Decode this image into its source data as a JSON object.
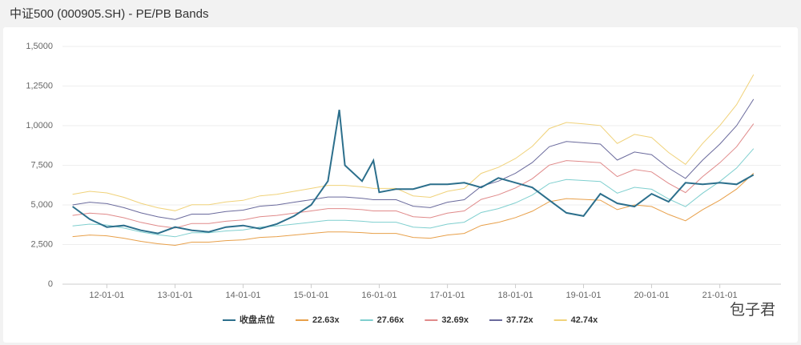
{
  "chart_data": {
    "type": "line",
    "title": "中证500 (000905.SH) - PE/PB Bands",
    "watermark": "包子君",
    "x": [
      "11-07-01",
      "11-10-01",
      "12-01-01",
      "12-04-01",
      "12-07-01",
      "12-10-01",
      "13-01-01",
      "13-04-01",
      "13-07-01",
      "13-10-01",
      "14-01-01",
      "14-04-01",
      "14-07-01",
      "14-10-01",
      "15-01-01",
      "15-04-01",
      "15-06-01",
      "15-07-01",
      "15-10-01",
      "15-12-01",
      "16-01-01",
      "16-04-01",
      "16-07-01",
      "16-10-01",
      "17-01-01",
      "17-04-01",
      "17-07-01",
      "17-10-01",
      "18-01-01",
      "18-04-01",
      "18-07-01",
      "18-10-01",
      "19-01-01",
      "19-04-01",
      "19-07-01",
      "19-10-01",
      "20-01-01",
      "20-04-01",
      "20-07-01",
      "20-10-01",
      "21-01-01",
      "21-04-01",
      "21-07-01"
    ],
    "xlim": [
      "11-05-08",
      "21-11-25"
    ],
    "xticks": [
      "12-01-01",
      "13-01-01",
      "14-01-01",
      "15-01-01",
      "16-01-01",
      "17-01-01",
      "18-01-01",
      "19-01-01",
      "20-01-01",
      "21-01-01"
    ],
    "ylim": [
      0,
      15000
    ],
    "yticks": [
      0,
      {
        "value": 2500,
        "label": "2,500"
      },
      {
        "value": 5000,
        "label": "5,000"
      },
      {
        "value": 7500,
        "label": "7,500"
      },
      {
        "value": 10000,
        "label": "1,0000"
      },
      {
        "value": 12500,
        "label": "1,2500"
      },
      {
        "value": 15000,
        "label": "1,5000"
      }
    ],
    "series": [
      {
        "name": "收盘点位",
        "color": "#2c6f8c",
        "width": 2,
        "values": [
          4900,
          4100,
          3600,
          3700,
          3400,
          3200,
          3600,
          3400,
          3300,
          3600,
          3700,
          3500,
          3800,
          4300,
          5000,
          6500,
          11000,
          7500,
          6500,
          7800,
          5800,
          6000,
          6000,
          6300,
          6300,
          6400,
          6100,
          6700,
          6400,
          6100,
          5300,
          4500,
          4300,
          5700,
          5100,
          4900,
          5700,
          5200,
          6400,
          6300,
          6400,
          6300,
          6900
        ]
      },
      {
        "name": "22.63x",
        "color": "#e8a04a",
        "width": 1,
        "values": [
          3000,
          3100,
          3050,
          2900,
          2700,
          2550,
          2450,
          2650,
          2650,
          2750,
          2800,
          2950,
          3000,
          3100,
          3200,
          3300,
          3300,
          3300,
          3250,
          3200,
          3200,
          3200,
          2950,
          2900,
          3100,
          3200,
          3700,
          3900,
          4200,
          4600,
          5200,
          5400,
          5350,
          5300,
          4700,
          5000,
          4900,
          4400,
          4000,
          4700,
          5300,
          6000,
          7000
        ]
      },
      {
        "name": "27.66x",
        "color": "#7fcfcf",
        "width": 1,
        "values": [
          3670,
          3790,
          3730,
          3540,
          3300,
          3120,
          2990,
          3240,
          3240,
          3360,
          3420,
          3600,
          3670,
          3790,
          3910,
          4030,
          4030,
          4030,
          3970,
          3910,
          3910,
          3910,
          3600,
          3540,
          3790,
          3910,
          4520,
          4770,
          5130,
          5620,
          6350,
          6600,
          6540,
          6480,
          5740,
          6110,
          5990,
          5380,
          4890,
          5740,
          6480,
          7330,
          8550
        ]
      },
      {
        "name": "32.69x",
        "color": "#e08a8a",
        "width": 1,
        "values": [
          4340,
          4480,
          4410,
          4190,
          3900,
          3680,
          3540,
          3830,
          3830,
          3970,
          4050,
          4260,
          4340,
          4480,
          4620,
          4770,
          4770,
          4770,
          4700,
          4620,
          4620,
          4620,
          4260,
          4190,
          4480,
          4620,
          5350,
          5640,
          6070,
          6650,
          7510,
          7800,
          7730,
          7660,
          6790,
          7230,
          7080,
          6360,
          5780,
          6790,
          7660,
          8670,
          10120
        ]
      },
      {
        "name": "37.72x",
        "color": "#6a6a9c",
        "width": 1,
        "values": [
          5000,
          5170,
          5080,
          4830,
          4500,
          4250,
          4080,
          4420,
          4420,
          4580,
          4670,
          4920,
          5000,
          5170,
          5330,
          5500,
          5500,
          5500,
          5420,
          5330,
          5330,
          5330,
          4920,
          4830,
          5170,
          5330,
          6170,
          6500,
          7000,
          7670,
          8670,
          9000,
          8920,
          8840,
          7830,
          8340,
          8170,
          7330,
          6670,
          7830,
          8840,
          10000,
          11670
        ]
      },
      {
        "name": "42.74x",
        "color": "#f0d27a",
        "width": 1,
        "values": [
          5670,
          5860,
          5760,
          5480,
          5100,
          4820,
          4630,
          5010,
          5010,
          5190,
          5290,
          5570,
          5670,
          5860,
          6040,
          6230,
          6230,
          6230,
          6140,
          6040,
          6040,
          6040,
          5570,
          5480,
          5860,
          6040,
          6990,
          7370,
          7930,
          8690,
          9820,
          10200,
          10110,
          10010,
          8880,
          9450,
          9260,
          8310,
          7560,
          8880,
          10010,
          11330,
          13220
        ]
      }
    ]
  }
}
